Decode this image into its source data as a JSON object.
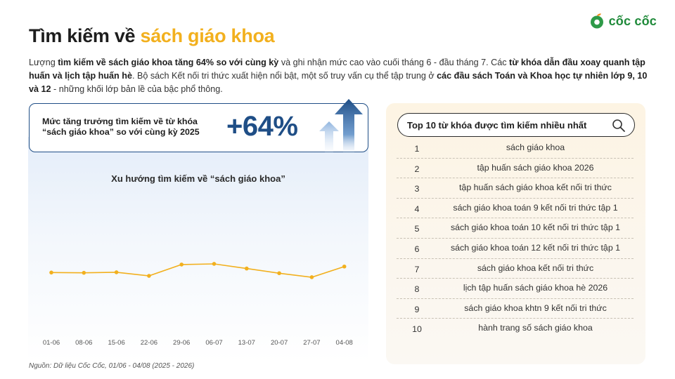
{
  "header": {
    "title_main": "Tìm kiếm về ",
    "title_highlight": "sách giáo khoa",
    "brand_name": "cốc cốc",
    "colors": {
      "highlight": "#f2b01e",
      "brand_green": "#1f8a3a",
      "brand_orange": "#f28c1b",
      "accent_blue": "#1f4e86",
      "line": "#f2b01e"
    }
  },
  "intro": {
    "p1": "Lượng ",
    "b1": "tìm kiếm về sách giáo khoa tăng 64% so với cùng kỳ",
    "p2": " và ghi nhận mức cao vào cuối tháng 6 - đầu tháng 7. Các ",
    "b2": "từ khóa dẫn đầu xoay quanh tập huấn và lịch tập huấn hè",
    "p3": ". Bộ sách Kết nối tri thức xuất hiện nổi bật, một số truy vấn cụ thể tập trung ở ",
    "b3": "các đầu sách Toán và Khoa học tự nhiên lớp 9, 10 và 12",
    "p4": " - những khối lớp bản lề của bậc phổ thông."
  },
  "growth": {
    "label_line1": "Mức tăng trưởng tìm kiếm về từ khóa",
    "label_line2": "“sách giáo khoa” so với cùng kỳ 2025",
    "value": "+64%",
    "icon": "up-arrows-icon"
  },
  "chart_data": {
    "type": "line",
    "title": "Xu hướng tìm kiếm về “sách giáo khoa”",
    "categories": [
      "01-06",
      "08-06",
      "15-06",
      "22-06",
      "29-06",
      "06-07",
      "13-07",
      "20-07",
      "27-07",
      "04-08"
    ],
    "values": [
      43,
      42.8,
      43.2,
      40.5,
      49,
      49.5,
      46,
      42.5,
      39.5,
      47.5
    ],
    "ylim": [
      0,
      100
    ],
    "grid": false,
    "legend": "none",
    "xlabel": "",
    "ylabel": ""
  },
  "source": "Nguồn: Dữ liệu Cốc Cốc, 01/06 - 04/08 (2025 - 2026)",
  "top_keywords": {
    "title": "Top 10 từ khóa được tìm kiếm nhiều nhất",
    "icon": "search-icon",
    "items": [
      {
        "rank": "1",
        "keyword": "sách giáo khoa"
      },
      {
        "rank": "2",
        "keyword": "tập huấn sách giáo khoa 2026"
      },
      {
        "rank": "3",
        "keyword": "tập huấn sách giáo khoa kết nối tri thức"
      },
      {
        "rank": "4",
        "keyword": "sách giáo khoa toán 9 kết nối tri thức tập 1"
      },
      {
        "rank": "5",
        "keyword": "sách giáo khoa toán 10 kết nối tri thức tập 1"
      },
      {
        "rank": "6",
        "keyword": "sách giáo khoa toán 12 kết nối tri thức tập 1"
      },
      {
        "rank": "7",
        "keyword": "sách giáo khoa kết nối tri thức"
      },
      {
        "rank": "8",
        "keyword": "lịch tập huấn sách giáo khoa hè 2026"
      },
      {
        "rank": "9",
        "keyword": "sách giáo khoa khtn 9 kết nối tri thức"
      },
      {
        "rank": "10",
        "keyword": "hành trang số sách giáo khoa"
      }
    ]
  }
}
